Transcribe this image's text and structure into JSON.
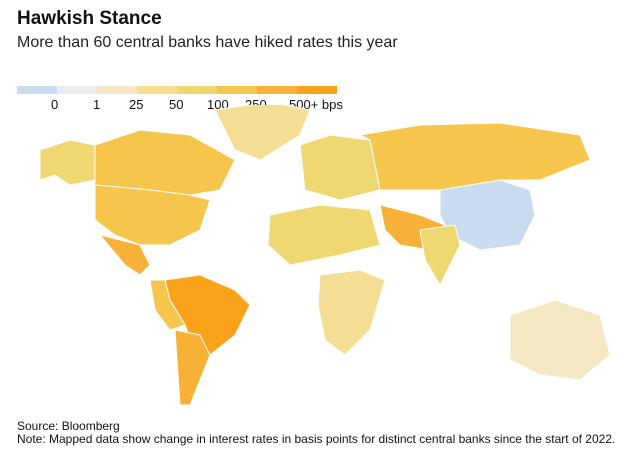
{
  "title": "Hawkish Stance",
  "subtitle": "More than 60 central banks have hiked rates this year",
  "legend": {
    "colors": [
      "#c9dcef",
      "#ececec",
      "#f3e7c4",
      "#f3de93",
      "#efd872",
      "#f5c54c",
      "#f7b136",
      "#faa21a"
    ],
    "labels": [
      "0",
      "1",
      "25",
      "50",
      "100",
      "250",
      "500+ bps"
    ]
  },
  "regions": [
    {
      "level": 4
    },
    {
      "level": 5
    },
    {
      "level": 5
    },
    {
      "level": 6
    },
    {
      "level": 7
    },
    {
      "level": 5
    },
    {
      "level": 6
    },
    {
      "level": 0
    },
    {
      "level": 3
    },
    {
      "level": 4
    },
    {
      "level": 5
    },
    {
      "level": 4
    },
    {
      "level": 3
    },
    {
      "level": 6
    },
    {
      "level": 4
    },
    {
      "level": 2
    }
  ],
  "source": "Source: Bloomberg",
  "note": "Note: Mapped data show change in interest rates in basis points for distinct central banks since the start of 2022."
}
